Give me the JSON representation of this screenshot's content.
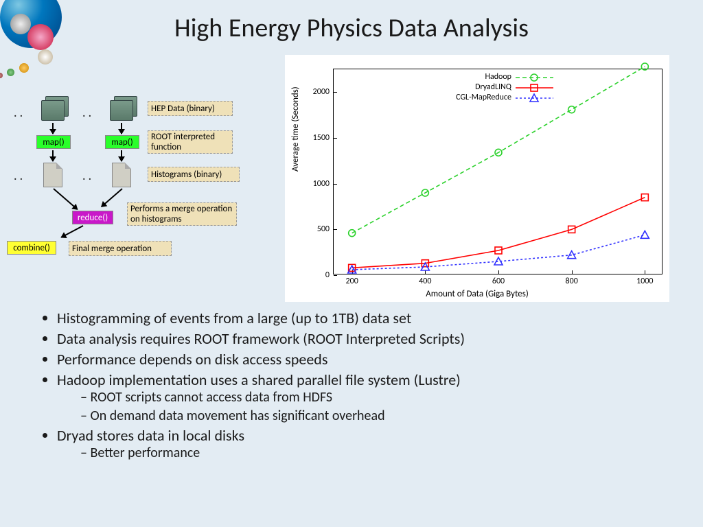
{
  "title": "High Energy Physics Data Analysis",
  "flow": {
    "map_label": "map()",
    "map_bg": "#2aff2a",
    "reduce_label": "reduce()",
    "reduce_bg": "#c918c9",
    "combine_label": "combine()",
    "combine_bg": "#ffff33",
    "l_hep": "HEP Data (binary)",
    "l_root": "ROOT interpreted function",
    "l_hist": "Histograms (binary)",
    "l_merge": "Performs a merge operation on histograms",
    "l_final": "Final merge operation",
    "label_bg": "#efe1b8"
  },
  "chart": {
    "type": "line",
    "xlabel": "Amount of Data (Giga Bytes)",
    "ylabel": "Average time (Seconds)",
    "xlim": [
      150,
      1050
    ],
    "ylim": [
      0,
      2250
    ],
    "xticks": [
      200,
      400,
      600,
      800,
      1000
    ],
    "yticks": [
      0,
      500,
      1000,
      1500,
      2000
    ],
    "background_color": "#ffffff",
    "plot_border": "#000000",
    "label_fontsize": 13,
    "tick_fontsize": 12,
    "series": [
      {
        "name": "Hadoop",
        "color": "#2bd12b",
        "marker": "circle",
        "dash": "6,4",
        "x": [
          200,
          400,
          600,
          800,
          1000
        ],
        "y": [
          460,
          900,
          1340,
          1810,
          2280
        ]
      },
      {
        "name": "DryadLINQ",
        "color": "#ff0000",
        "marker": "square",
        "dash": "",
        "x": [
          200,
          400,
          600,
          800,
          1000
        ],
        "y": [
          80,
          130,
          270,
          500,
          850
        ]
      },
      {
        "name": "CGL-MapReduce",
        "color": "#3030ff",
        "marker": "triangle",
        "dash": "3,3",
        "x": [
          200,
          400,
          600,
          800,
          1000
        ],
        "y": [
          60,
          90,
          150,
          220,
          440
        ]
      }
    ]
  },
  "bullets": [
    {
      "t": "Histogramming of events from a large (up to 1TB) data set"
    },
    {
      "t": "Data analysis requires ROOT framework (ROOT Interpreted Scripts)"
    },
    {
      "t": "Performance depends on disk access speeds"
    },
    {
      "t": "Hadoop implementation uses a shared parallel file system (Lustre)",
      "sub": [
        "ROOT scripts cannot access data from HDFS",
        "On demand data movement has significant overhead"
      ]
    },
    {
      "t": "Dryad stores data in local disks",
      "sub": [
        "Better performance"
      ]
    }
  ]
}
